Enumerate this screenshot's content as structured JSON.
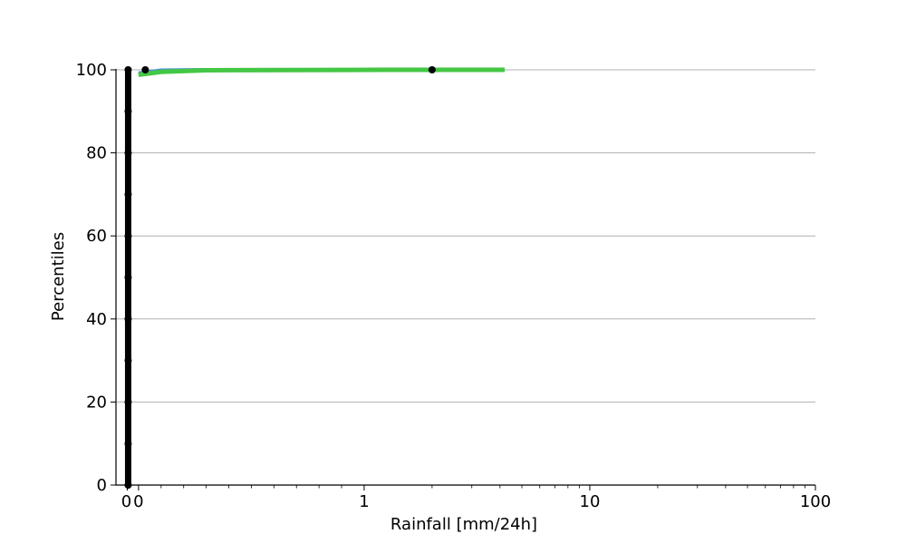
{
  "chart_data": {
    "type": "line",
    "title": "",
    "xlabel": "Rainfall [mm/24h]",
    "ylabel": "Percentiles",
    "xscale": "symlog",
    "xlim": [
      -0.1,
      100
    ],
    "ylim": [
      0,
      100
    ],
    "grid": "horizontal",
    "x_ticks": [
      {
        "value": 0,
        "label": "0"
      },
      {
        "value": 1,
        "label": "1"
      },
      {
        "value": 10,
        "label": "10"
      },
      {
        "value": 100,
        "label": "100"
      }
    ],
    "y_ticks": [
      0,
      20,
      40,
      60,
      80,
      100
    ],
    "series": [
      {
        "color": "#d2a679",
        "width": 4,
        "x": [
          0,
          0.1,
          0.3,
          1.2,
          3.3
        ],
        "y": [
          99.1,
          99.8,
          100,
          100,
          100
        ]
      },
      {
        "color": "#4a90d9",
        "width": 4,
        "x": [
          0,
          0.1,
          0.3,
          1.2,
          3.3
        ],
        "y": [
          99.2,
          99.9,
          100,
          100,
          100
        ]
      },
      {
        "color": "#2e7d32",
        "width": 3,
        "x": [
          0,
          0.1,
          0.3,
          1.2,
          3.3
        ],
        "y": [
          99.0,
          99.6,
          99.9,
          99.95,
          100
        ]
      },
      {
        "color": "#44c744",
        "width": 5,
        "x": [
          0,
          0.1,
          0.3,
          1.2,
          4.2
        ],
        "y": [
          98.8,
          99.5,
          99.9,
          100,
          100
        ]
      }
    ],
    "observed": {
      "color": "#000000",
      "points": [
        {
          "x": 0,
          "y": 0
        },
        {
          "x": 0,
          "y": 10
        },
        {
          "x": 0,
          "y": 20
        },
        {
          "x": 0,
          "y": 30
        },
        {
          "x": 0,
          "y": 40
        },
        {
          "x": 0,
          "y": 50
        },
        {
          "x": 0,
          "y": 60
        },
        {
          "x": 0,
          "y": 70
        },
        {
          "x": 0,
          "y": 80
        },
        {
          "x": 0,
          "y": 90
        },
        {
          "x": 0,
          "y": 100
        },
        {
          "x": 0.03,
          "y": 100
        },
        {
          "x": 2.0,
          "y": 100
        }
      ]
    }
  }
}
